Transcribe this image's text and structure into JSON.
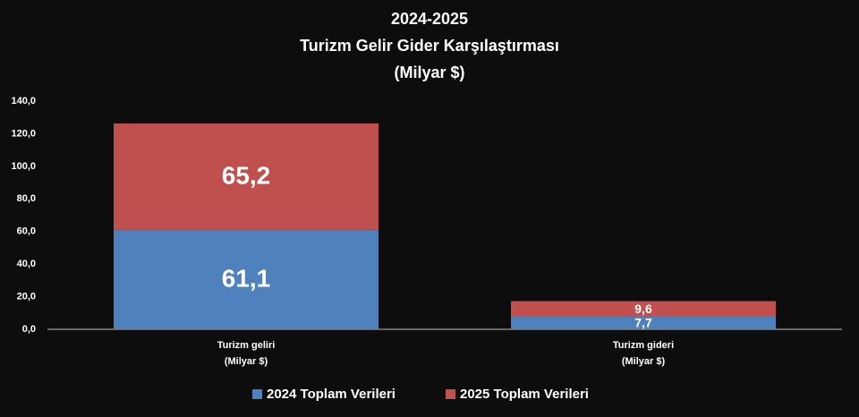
{
  "chart_data": {
    "type": "stacked-bar",
    "title": [
      "2024-2025",
      "Turizm Gelir Gider Karşılaştırması",
      "(Milyar $)"
    ],
    "categories": [
      [
        "Turizm geliri",
        "(Milyar $)"
      ],
      [
        "Turizm gideri",
        "(Milyar $)"
      ]
    ],
    "series": [
      {
        "name": "2024 Toplam Verileri",
        "color": "#4f81bd",
        "values": [
          61.1,
          7.7
        ],
        "value_labels": [
          "61,1",
          "7,7"
        ]
      },
      {
        "name": "2025 Toplam Verileri",
        "color": "#c0504d",
        "values": [
          65.2,
          9.6
        ],
        "value_labels": [
          "65,2",
          "9,6"
        ]
      }
    ],
    "ylim": [
      0,
      140
    ],
    "yticks": [
      {
        "value": 0,
        "label": "0,0"
      },
      {
        "value": 20,
        "label": "20,0"
      },
      {
        "value": 40,
        "label": "40,0"
      },
      {
        "value": 60,
        "label": "60,0"
      },
      {
        "value": 80,
        "label": "80,0"
      },
      {
        "value": 100,
        "label": "100,0"
      },
      {
        "value": 120,
        "label": "120,0"
      },
      {
        "value": 140,
        "label": "140,0"
      }
    ],
    "grid": false,
    "legend": "bottom"
  }
}
